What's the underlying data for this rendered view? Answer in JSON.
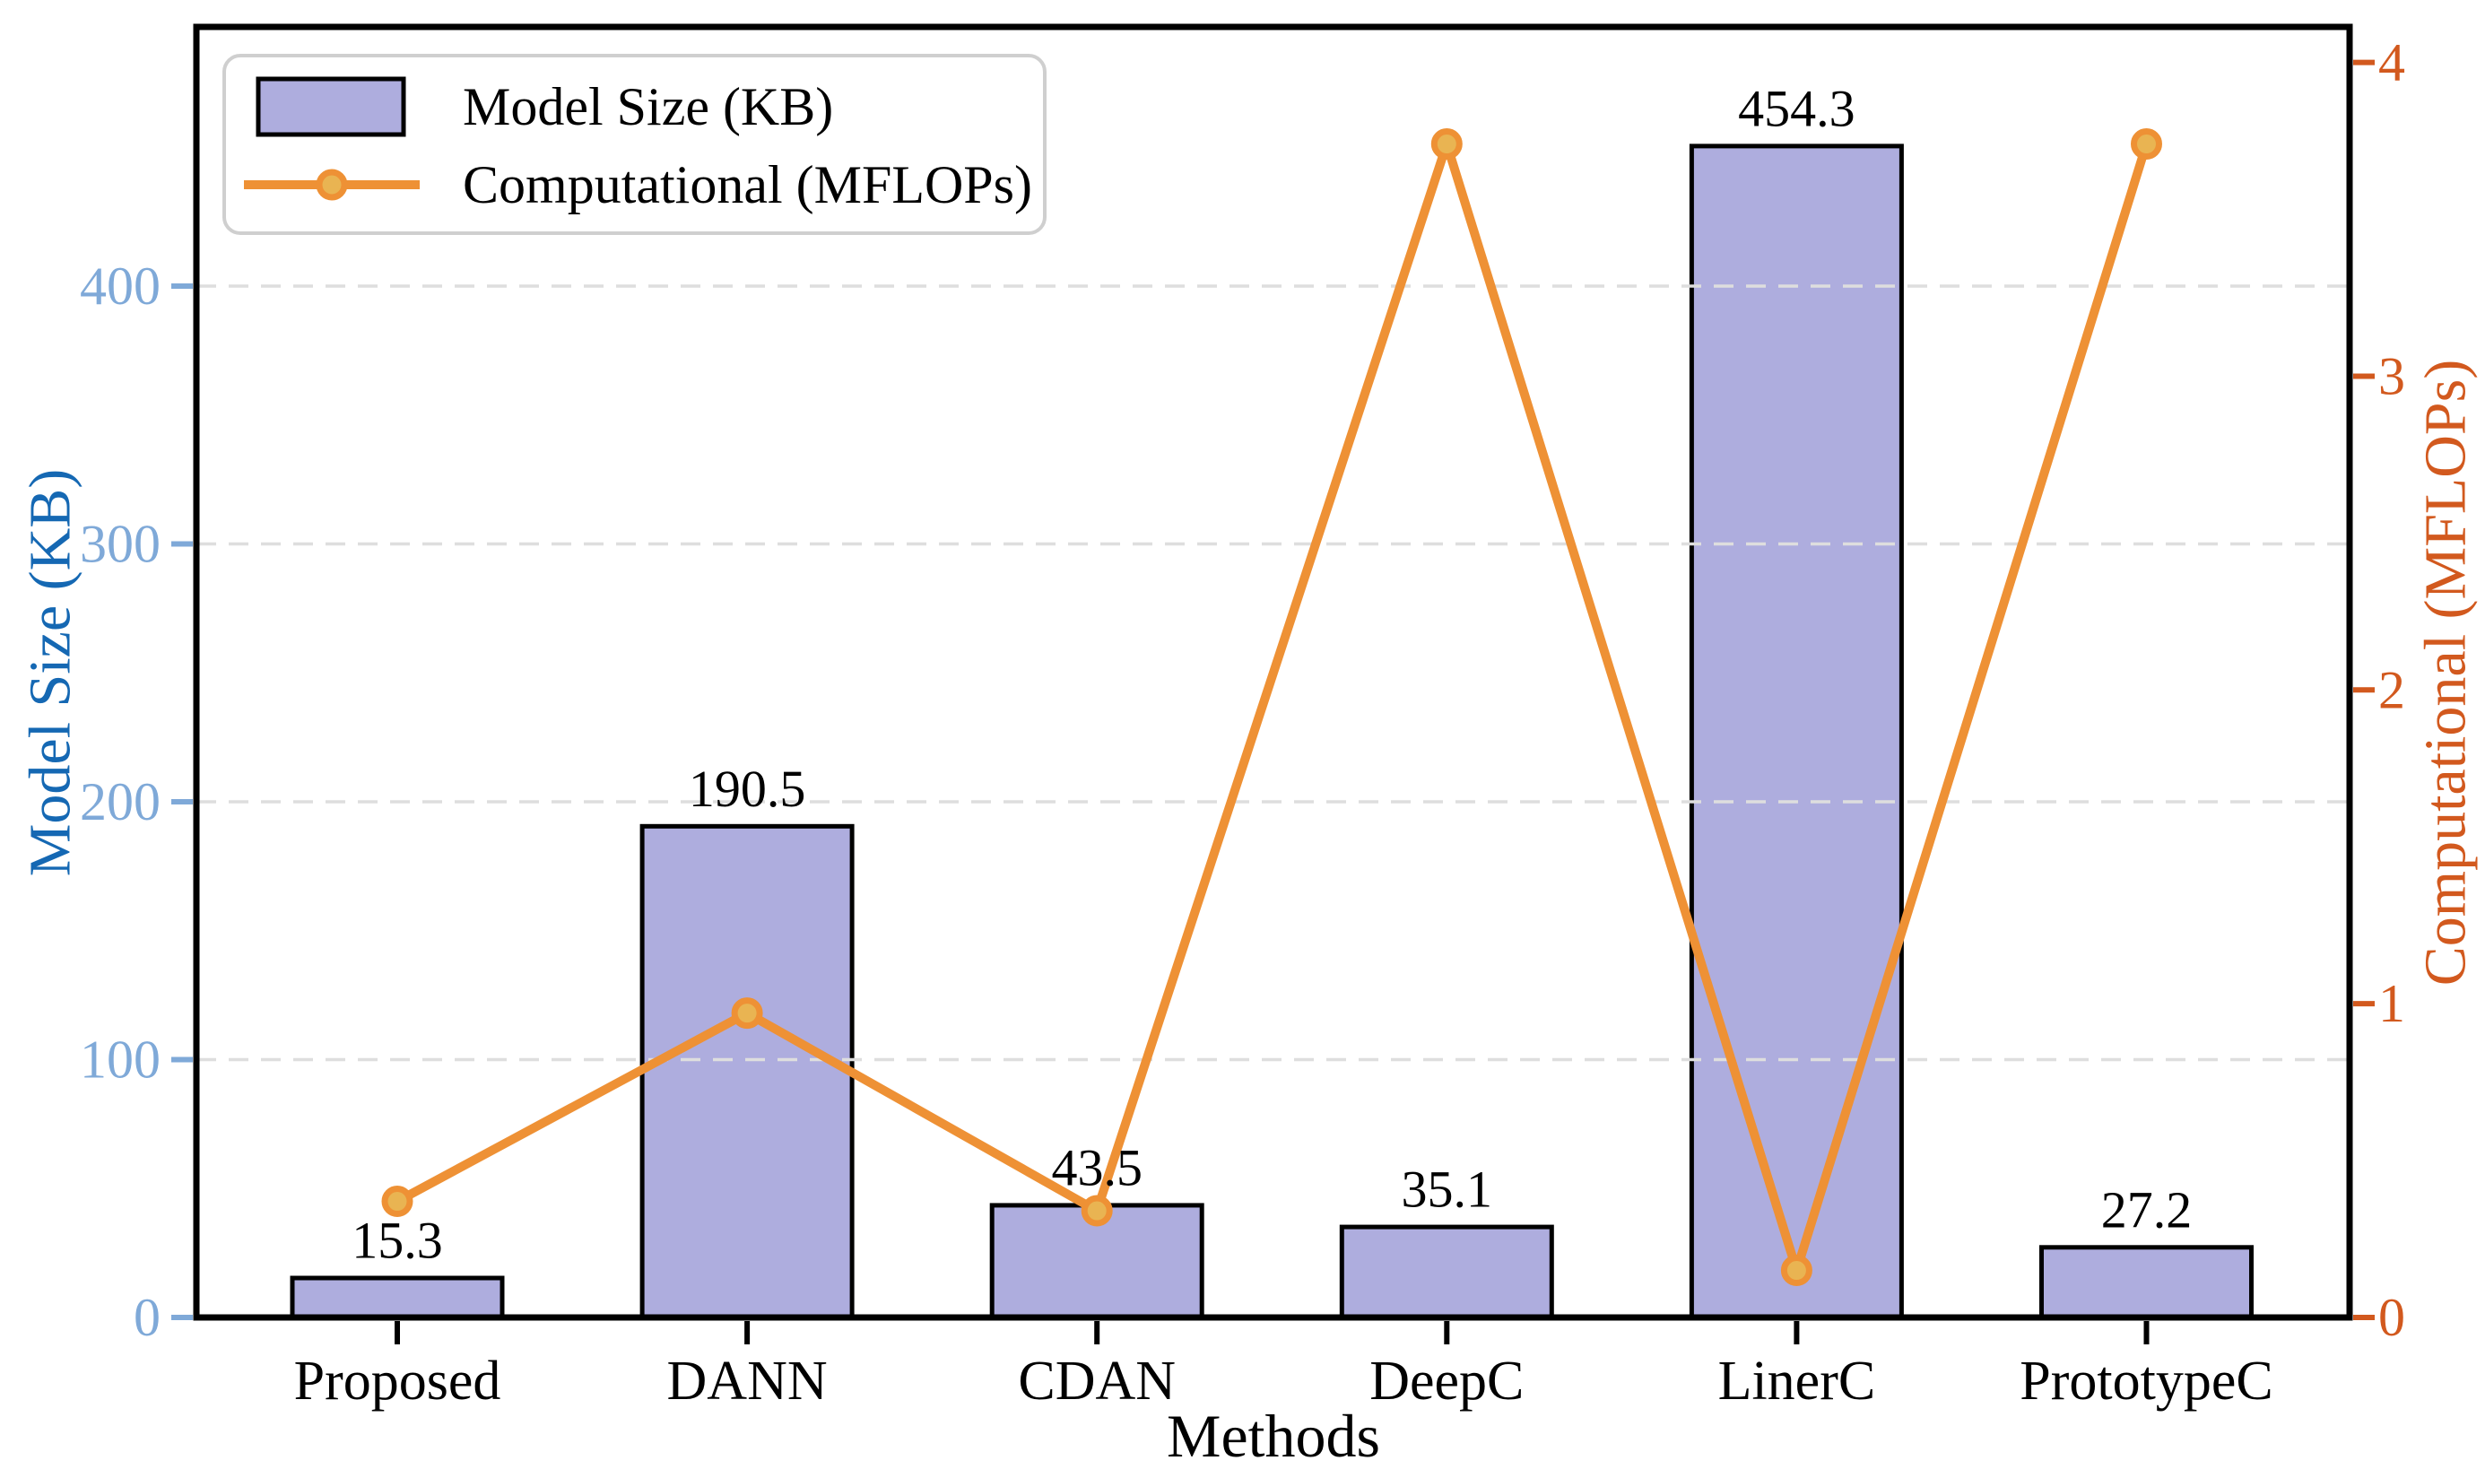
{
  "chart_data": {
    "type": "bar+line",
    "categories": [
      "Proposed",
      "DANN",
      "CDAN",
      "DeepC",
      "LinerC",
      "PrototypeC"
    ],
    "series": [
      {
        "name": "Model Size (KB)",
        "type": "bar",
        "axis": "left",
        "values": [
          15.3,
          190.5,
          43.5,
          35.1,
          454.3,
          27.2
        ],
        "labels": [
          "15.3",
          "190.5",
          "43.5",
          "35.1",
          "454.3",
          "27.2"
        ]
      },
      {
        "name": "Computational (MFLOPs)",
        "type": "line",
        "axis": "right",
        "values": [
          0.37,
          0.97,
          0.34,
          3.74,
          0.15,
          3.74
        ]
      }
    ],
    "xlabel": "Methods",
    "axes": {
      "left": {
        "label": "Model Size (KB)",
        "ticks": [
          "0",
          "100",
          "200",
          "300",
          "400"
        ],
        "range": [
          0,
          500
        ]
      },
      "right": {
        "label": "Computational (MFLOPs)",
        "ticks": [
          "0",
          "1",
          "2",
          "3",
          "4"
        ],
        "range": [
          0,
          4.11
        ]
      }
    },
    "legend": {
      "position": "upper-left",
      "entries": [
        {
          "label": "Model Size (KB)",
          "swatch": "bar"
        },
        {
          "label": "Computational (MFLOPs)",
          "swatch": "line-marker"
        }
      ]
    },
    "grid": {
      "visible": true,
      "axis": "left",
      "style": "dashed"
    },
    "colors": {
      "bar_fill": "#aeadde",
      "bar_edge": "#000000",
      "line": "#ee9135",
      "marker_fill": "#e9b452",
      "marker_edge": "#ee9135",
      "left_tick": "#7fa9d8",
      "left_label": "#1568b3",
      "right_axis": "#d2591e",
      "grid": "#dedede",
      "spine": "#000000",
      "text": "#000000",
      "legend_border": "#cfcfcf",
      "background": "#ffffff"
    }
  }
}
